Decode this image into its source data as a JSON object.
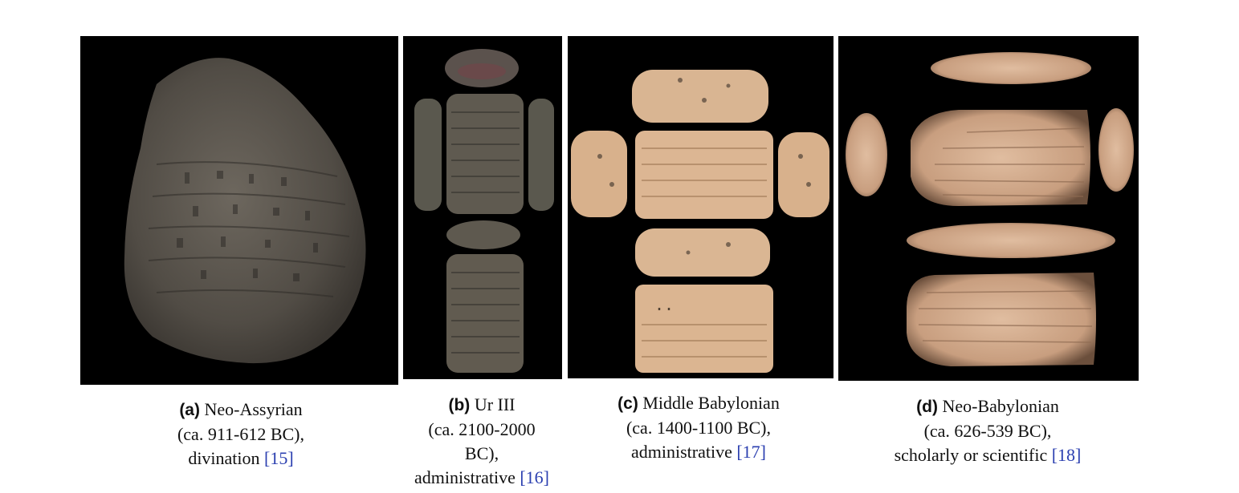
{
  "figures": [
    {
      "tag": "(a)",
      "line1": "Neo-Assyrian",
      "line2": "(ca. 911-612 BC),",
      "line3": "divination",
      "cite": "[15]"
    },
    {
      "tag": "(b)",
      "line1": "Ur III",
      "line2": "(ca. 2100-2000",
      "line3": "BC),",
      "line4": "administrative",
      "cite": "[16]"
    },
    {
      "tag": "(c)",
      "line1": "Middle Babylonian",
      "line2": "(ca. 1400-1100 BC),",
      "line3": "administrative",
      "cite": "[17]"
    },
    {
      "tag": "(d)",
      "line1": "Neo-Babylonian",
      "line2": "(ca. 626-539 BC),",
      "line3": "scholarly or scientific",
      "cite": "[18]"
    }
  ],
  "colors": {
    "background": "#000000",
    "clay_dark": "#4a4640",
    "clay_gray": "#6b6459",
    "clay_light": "#d9b08a",
    "citation": "#2b3fb0"
  }
}
